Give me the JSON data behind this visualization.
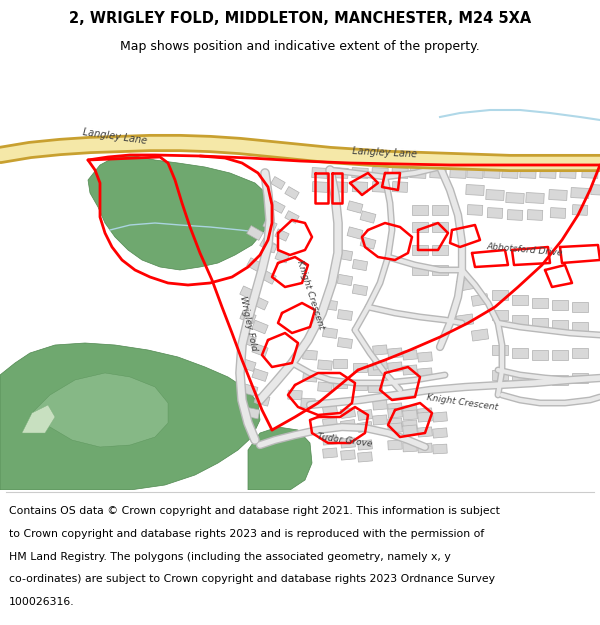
{
  "title_line1": "2, WRIGLEY FOLD, MIDDLETON, MANCHESTER, M24 5XA",
  "title_line2": "Map shows position and indicative extent of the property.",
  "footer_lines": [
    "Contains OS data © Crown copyright and database right 2021. This information is subject",
    "to Crown copyright and database rights 2023 and is reproduced with the permission of",
    "HM Land Registry. The polygons (including the associated geometry, namely x, y",
    "co-ordinates) are subject to Crown copyright and database rights 2023 Ordnance Survey",
    "100026316."
  ],
  "bg": "#ffffff",
  "map_bg": "#f7f7f7",
  "green_dark": "#6fa86f",
  "green_mid": "#8dc08d",
  "green_light": "#b8d8b8",
  "road_yellow_fill": "#f5e8a8",
  "road_yellow_border": "#c8a030",
  "road_gray_fill": "#e8e8e8",
  "road_gray_border": "#b8b8b8",
  "building_fill": "#d8d8d8",
  "building_border": "#b0b0b0",
  "red": "#ff0000",
  "water_blue": "#b8dce8",
  "label_color": "#404040",
  "title_fs": 10.5,
  "subtitle_fs": 9,
  "label_fs": 6.5,
  "footer_fs": 7.8
}
